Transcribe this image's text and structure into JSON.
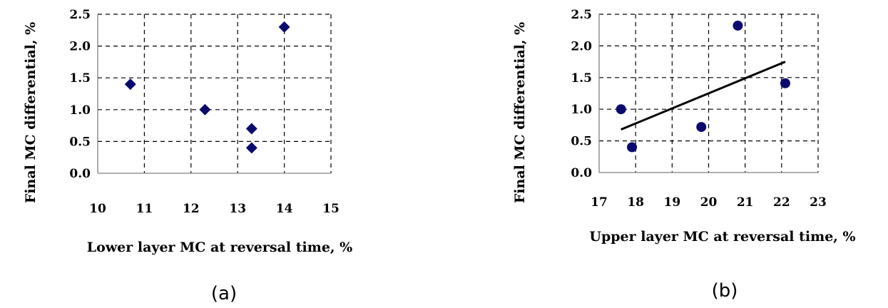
{
  "chart_data": [
    {
      "type": "scatter",
      "panel_label": "(a)",
      "xlabel": "Lower layer MC at reversal time,  %",
      "ylabel": "Final MC differential, %",
      "xlim": [
        10,
        15
      ],
      "ylim": [
        0.0,
        2.5
      ],
      "xticks": [
        "10",
        "11",
        "12",
        "13",
        "14",
        "15"
      ],
      "yticks": [
        "0.0",
        "0.5",
        "1.0",
        "1.5",
        "2.0",
        "2.5"
      ],
      "grid": true,
      "marker": "diamond",
      "marker_color": "#0a0a6e",
      "series": [
        {
          "x": [
            10.7,
            12.3,
            13.3,
            13.3,
            14.0
          ],
          "y": [
            1.4,
            1.0,
            0.7,
            0.4,
            2.3
          ]
        }
      ]
    },
    {
      "type": "scatter",
      "panel_label": "(b)",
      "xlabel": "Upper layer MC at reversal time,  %",
      "ylabel": "Final MC differential, %",
      "xlim": [
        17,
        23
      ],
      "ylim": [
        0.0,
        2.5
      ],
      "xticks": [
        "17",
        "18",
        "19",
        "20",
        "21",
        "22",
        "23"
      ],
      "yticks": [
        "0.0",
        "0.5",
        "1.0",
        "1.5",
        "2.0",
        "2.5"
      ],
      "grid": true,
      "marker": "circle",
      "marker_color": "#0a0a6e",
      "series": [
        {
          "x": [
            17.6,
            17.9,
            19.8,
            20.8,
            22.1
          ],
          "y": [
            1.0,
            0.4,
            0.72,
            2.32,
            1.41
          ]
        }
      ],
      "trendline": {
        "x": [
          17.6,
          22.1
        ],
        "y": [
          0.68,
          1.75
        ]
      }
    }
  ]
}
